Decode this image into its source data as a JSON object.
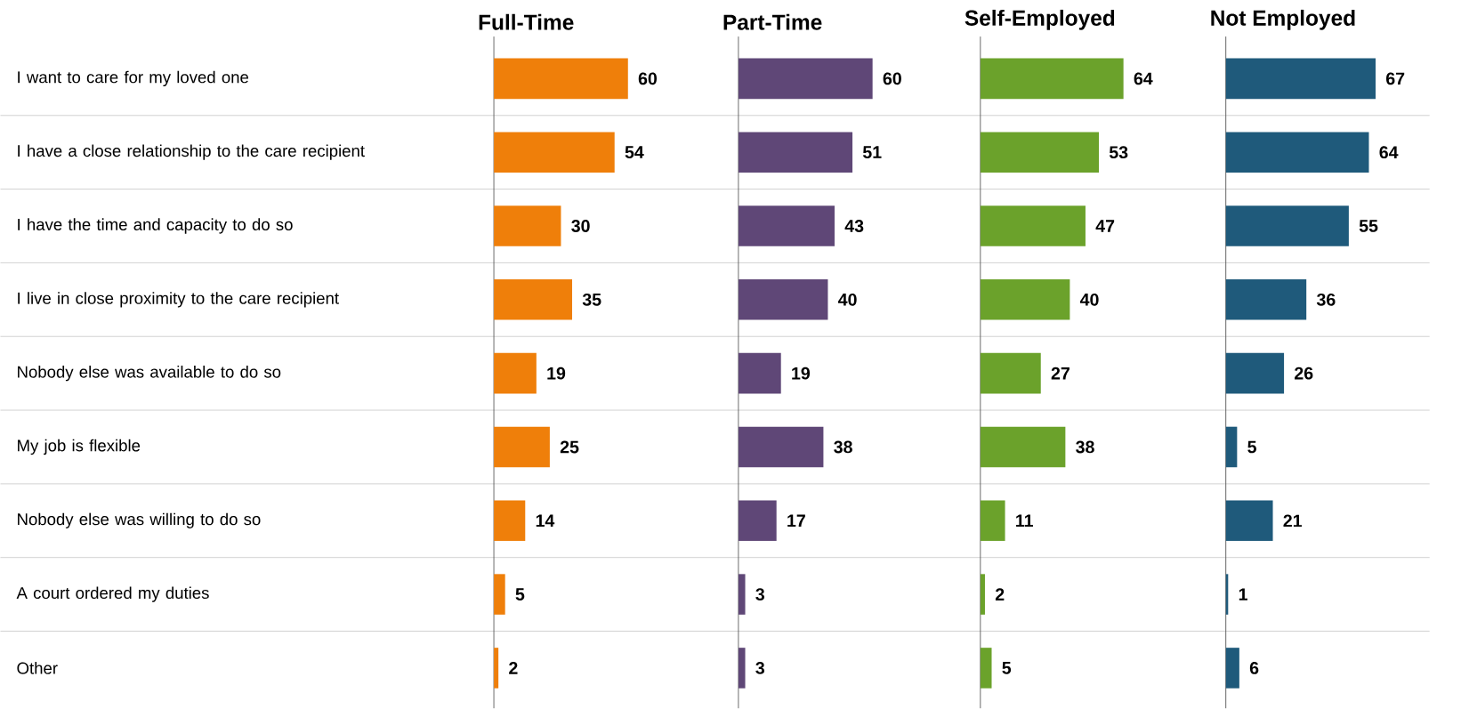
{
  "chart_data": [
    {
      "type": "bar",
      "orientation": "horizontal",
      "title": "Full-Time",
      "categories": [
        "I want to care for my loved one",
        "I have a close relationship to the care recipient",
        "I have the time and capacity to do so",
        "I live in close proximity to the care recipient",
        "Nobody else was available to do so",
        "My job is flexible",
        "Nobody else was willing to do so",
        "A court ordered my duties",
        "Other"
      ],
      "values": [
        60,
        54,
        30,
        35,
        19,
        25,
        14,
        5,
        2
      ],
      "color": "#ef7f0a",
      "data_labels": true,
      "tick_labels": "y",
      "grid": "y"
    },
    {
      "type": "bar",
      "orientation": "horizontal",
      "title": "Part-Time",
      "values": [
        60,
        51,
        43,
        40,
        19,
        38,
        17,
        3,
        3
      ],
      "color": "#5f4777",
      "data_labels": true,
      "tick_labels": false,
      "grid": "y"
    },
    {
      "type": "bar",
      "orientation": "horizontal",
      "title": "Self-Employed",
      "values": [
        64,
        53,
        47,
        40,
        27,
        38,
        11,
        2,
        5
      ],
      "color": "#6ba22b",
      "data_labels": true,
      "tick_labels": false,
      "grid": "y"
    },
    {
      "type": "bar",
      "orientation": "horizontal",
      "title": "Not Employed",
      "values": [
        67,
        64,
        55,
        36,
        26,
        5,
        21,
        1,
        6
      ],
      "color": "#1f5a7b",
      "data_labels": true,
      "tick_labels": false,
      "grid": "y"
    }
  ]
}
